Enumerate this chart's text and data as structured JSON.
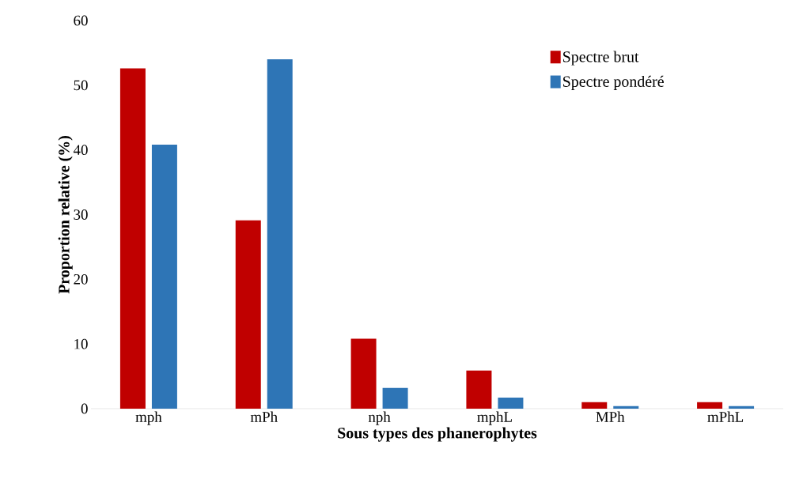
{
  "chart_data": {
    "type": "bar",
    "xlabel": "Sous types des phanerophytes",
    "ylabel": "Proportion  relative (%)",
    "categories": [
      "mph",
      "mPh",
      "nph",
      "mphL",
      "MPh",
      "mPhL"
    ],
    "series": [
      {
        "name": "Spectre brut",
        "color": "#c00000",
        "values": [
          52.6,
          29.1,
          10.8,
          5.9,
          1.0,
          1.0
        ]
      },
      {
        "name": "Spectre pondéré",
        "color": "#2e75b6",
        "values": [
          40.8,
          54.0,
          3.2,
          1.7,
          0.4,
          0.4
        ]
      }
    ],
    "ylim": [
      0,
      60
    ],
    "yticks": [
      0,
      10,
      20,
      30,
      40,
      50,
      60
    ],
    "legend": "top right"
  }
}
